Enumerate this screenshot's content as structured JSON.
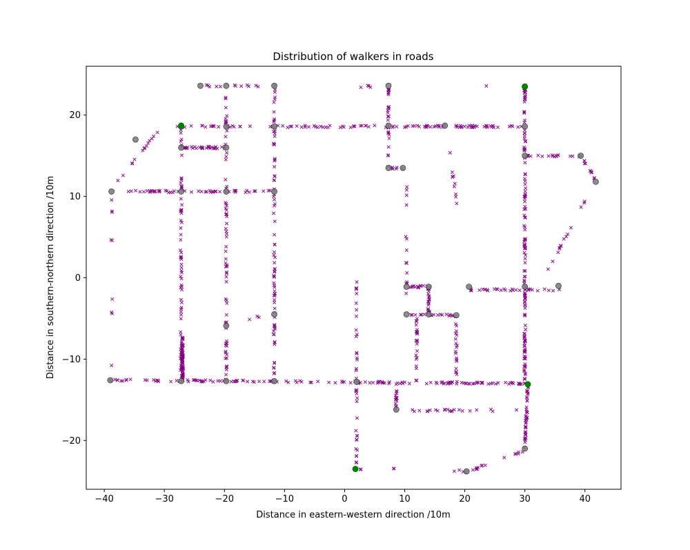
{
  "chart_data": {
    "type": "scatter",
    "title": "Distribution of walkers in roads",
    "xlabel": "Distance in eastern-western direction  /10m",
    "ylabel": "Distance in southern-northern direction /10m",
    "xlim": [
      -43.0,
      46.0
    ],
    "ylim": [
      -26.0,
      26.0
    ],
    "xticks": [
      -40,
      -30,
      -20,
      -10,
      0,
      10,
      20,
      30,
      40
    ],
    "yticks": [
      -20,
      -10,
      0,
      10,
      20
    ],
    "grid": false,
    "colors": {
      "walkers": "#800080",
      "nodes": "#808080",
      "entrances": "#008000"
    },
    "nodes": [
      [
        -24.0,
        23.6
      ],
      [
        -19.7,
        23.6
      ],
      [
        -11.7,
        23.6
      ],
      [
        7.3,
        23.6
      ],
      [
        30.0,
        23.5
      ],
      [
        -27.2,
        18.6
      ],
      [
        -19.7,
        18.6
      ],
      [
        -11.7,
        18.6
      ],
      [
        7.3,
        18.7
      ],
      [
        16.7,
        18.7
      ],
      [
        30.0,
        18.6
      ],
      [
        -34.8,
        17.0
      ],
      [
        -27.2,
        16.0
      ],
      [
        -19.7,
        16.0
      ],
      [
        30.0,
        15.0
      ],
      [
        39.3,
        15.0
      ],
      [
        7.3,
        13.5
      ],
      [
        9.7,
        13.5
      ],
      [
        -38.8,
        10.6
      ],
      [
        -27.2,
        10.6
      ],
      [
        -19.7,
        10.6
      ],
      [
        -11.7,
        10.6
      ],
      [
        41.8,
        11.8
      ],
      [
        10.3,
        -1.1
      ],
      [
        14.0,
        -1.1
      ],
      [
        20.7,
        -1.1
      ],
      [
        30.0,
        -1.1
      ],
      [
        35.6,
        -1.0
      ],
      [
        -11.7,
        -4.5
      ],
      [
        10.3,
        -4.5
      ],
      [
        14.0,
        -4.5
      ],
      [
        18.6,
        -4.6
      ],
      [
        -19.7,
        -5.9
      ],
      [
        -39.0,
        -12.6
      ],
      [
        -27.2,
        -12.7
      ],
      [
        -19.7,
        -12.7
      ],
      [
        -11.7,
        -12.7
      ],
      [
        2.0,
        -12.8
      ],
      [
        8.6,
        -16.2
      ],
      [
        30.0,
        -21.0
      ],
      [
        20.3,
        -23.8
      ]
    ],
    "entrances": [
      [
        -27.2,
        18.7
      ],
      [
        30.0,
        23.5
      ],
      [
        30.5,
        -13.1
      ],
      [
        1.8,
        -23.5
      ]
    ],
    "walker_segments": [
      {
        "from": [
          -27.2,
          18.6
        ],
        "to": [
          -27.2,
          -12.7
        ],
        "n": 70
      },
      {
        "from": [
          -19.7,
          23.6
        ],
        "to": [
          -19.7,
          -12.7
        ],
        "n": 70
      },
      {
        "from": [
          -11.7,
          23.6
        ],
        "to": [
          -11.7,
          -12.7
        ],
        "n": 80
      },
      {
        "from": [
          30.0,
          23.5
        ],
        "to": [
          30.0,
          -13.0
        ],
        "n": 140
      },
      {
        "from": [
          30.5,
          -13.0
        ],
        "to": [
          30.0,
          -21.0
        ],
        "n": 40
      },
      {
        "from": [
          -39.0,
          -12.6
        ],
        "to": [
          30.5,
          -13.0
        ],
        "n": 150
      },
      {
        "from": [
          -28.0,
          18.6
        ],
        "to": [
          30.0,
          18.6
        ],
        "n": 110
      },
      {
        "from": [
          -27.2,
          16.0
        ],
        "to": [
          -19.7,
          16.0
        ],
        "n": 30
      },
      {
        "from": [
          -36.0,
          10.6
        ],
        "to": [
          -11.7,
          10.6
        ],
        "n": 50
      },
      {
        "from": [
          30.0,
          15.0
        ],
        "to": [
          39.3,
          15.0
        ],
        "n": 20
      },
      {
        "from": [
          39.3,
          15.0
        ],
        "to": [
          41.8,
          12.0
        ],
        "n": 10
      },
      {
        "from": [
          40.2,
          9.6
        ],
        "to": [
          33.5,
          0.5
        ],
        "n": 14
      },
      {
        "from": [
          -38.3,
          11.5
        ],
        "to": [
          -31.0,
          18.0
        ],
        "n": 14
      },
      {
        "from": [
          -38.8,
          10.6
        ],
        "to": [
          -38.8,
          4.0
        ],
        "n": 5
      },
      {
        "from": [
          -38.8,
          -2.5
        ],
        "to": [
          -38.8,
          -4.5
        ],
        "n": 3
      },
      {
        "from": [
          -24.5,
          23.6
        ],
        "to": [
          -13.5,
          23.6
        ],
        "n": 12
      },
      {
        "from": [
          1.5,
          23.5
        ],
        "to": [
          6.5,
          23.5
        ],
        "n": 4
      },
      {
        "from": [
          7.3,
          23.6
        ],
        "to": [
          7.3,
          13.5
        ],
        "n": 28
      },
      {
        "from": [
          7.3,
          13.5
        ],
        "to": [
          9.7,
          13.5
        ],
        "n": 6
      },
      {
        "from": [
          10.3,
          12.2
        ],
        "to": [
          10.3,
          -4.5
        ],
        "n": 14
      },
      {
        "from": [
          10.3,
          -1.1
        ],
        "to": [
          14.0,
          -1.1
        ],
        "n": 12
      },
      {
        "from": [
          14.0,
          -1.1
        ],
        "to": [
          14.0,
          -4.5
        ],
        "n": 24
      },
      {
        "from": [
          10.3,
          -4.5
        ],
        "to": [
          18.6,
          -4.6
        ],
        "n": 18
      },
      {
        "from": [
          12.0,
          -4.5
        ],
        "to": [
          12.0,
          -12.8
        ],
        "n": 22
      },
      {
        "from": [
          18.6,
          -4.6
        ],
        "to": [
          18.6,
          -13.0
        ],
        "n": 20
      },
      {
        "from": [
          20.7,
          -1.5
        ],
        "to": [
          36.0,
          -1.5
        ],
        "n": 30
      },
      {
        "from": [
          17.5,
          15.5
        ],
        "to": [
          18.9,
          8.0
        ],
        "n": 10
      },
      {
        "from": [
          2.0,
          -0.4
        ],
        "to": [
          2.0,
          -12.8
        ],
        "n": 18
      },
      {
        "from": [
          2.0,
          -13.3
        ],
        "to": [
          2.0,
          -23.4
        ],
        "n": 18
      },
      {
        "from": [
          8.6,
          -13.0
        ],
        "to": [
          8.6,
          -16.2
        ],
        "n": 16
      },
      {
        "from": [
          10.0,
          -16.3
        ],
        "to": [
          30.0,
          -16.3
        ],
        "n": 22
      },
      {
        "from": [
          30.0,
          -21.3
        ],
        "to": [
          21.0,
          -23.7
        ],
        "n": 14
      },
      {
        "from": [
          17.0,
          -23.7
        ],
        "to": [
          20.3,
          -23.8
        ],
        "n": 4
      },
      {
        "from": [
          -27.0,
          -7.2
        ],
        "to": [
          -27.0,
          -12.6
        ],
        "n": 70
      },
      {
        "from": [
          -38.9,
          -10.8
        ],
        "to": [
          -38.9,
          -10.8
        ],
        "n": 1
      },
      {
        "from": [
          -14.0,
          -4.7
        ],
        "to": [
          -16.0,
          -5.3
        ],
        "n": 3
      },
      {
        "from": [
          8.0,
          -23.5
        ],
        "to": [
          8.8,
          -23.5
        ],
        "n": 2
      },
      {
        "from": [
          23.5,
          23.5
        ],
        "to": [
          23.5,
          23.5
        ],
        "n": 1
      },
      {
        "from": [
          2.6,
          -23.5
        ],
        "to": [
          2.9,
          -23.5
        ],
        "n": 2
      }
    ]
  }
}
